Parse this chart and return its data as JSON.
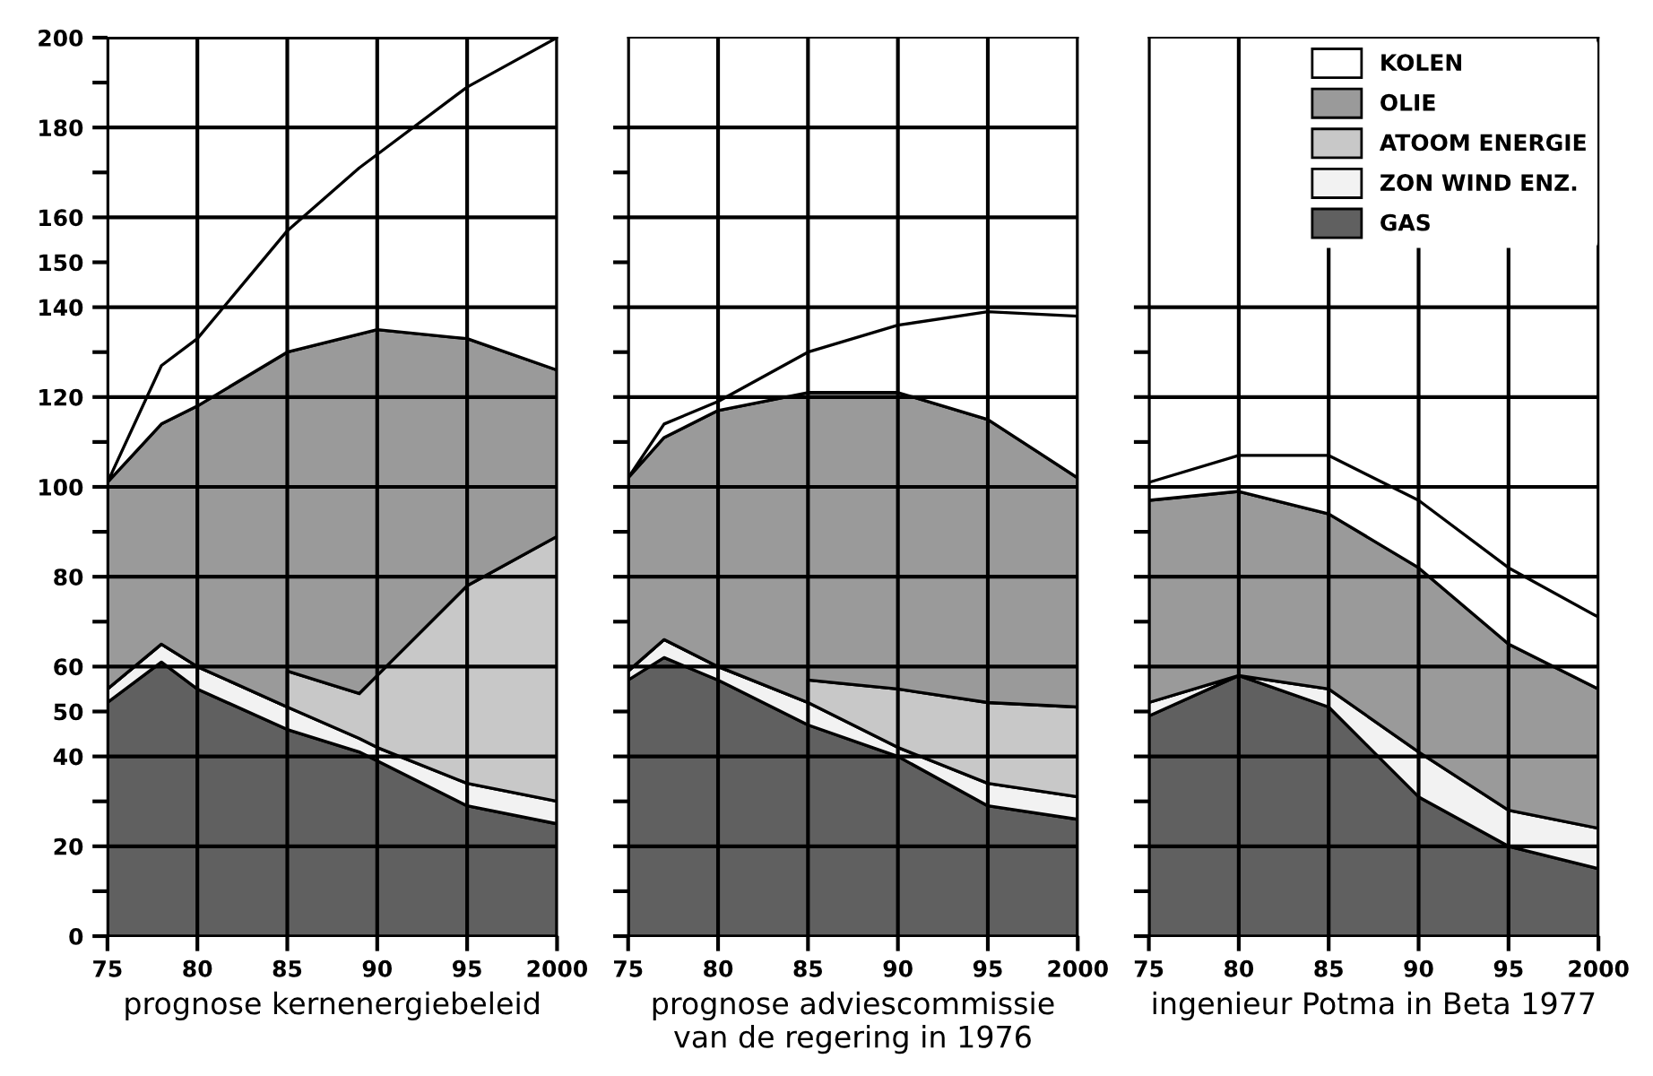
{
  "chart_data": [
    {
      "type": "area",
      "stacked": true,
      "xlabel": "prognose kernenergiebeleid",
      "x": [
        1975,
        1978,
        1980,
        1985,
        1985,
        1989,
        1990,
        1995,
        2000
      ],
      "series": [
        {
          "color": "#606060",
          "values": [
            52,
            61,
            55,
            46,
            46,
            41,
            39,
            29,
            25
          ]
        },
        {
          "color": "#f2f2f2",
          "values": [
            3,
            4,
            5,
            5,
            5,
            3,
            3,
            5,
            5
          ]
        },
        {
          "color": "#c8c8c8",
          "values": [
            0,
            0,
            0,
            0,
            8,
            10,
            16,
            44,
            59
          ]
        },
        {
          "color": "#9a9a9a",
          "values": [
            46,
            49,
            58,
            79,
            71,
            80,
            77,
            55,
            37
          ]
        },
        {
          "color": "#ffffff",
          "values": [
            0,
            13,
            15,
            27,
            27,
            37,
            39,
            56,
            74
          ]
        }
      ],
      "xlim": [
        1975,
        2000
      ],
      "xticks": [
        {
          "value": 1975,
          "label": "75"
        },
        {
          "value": 1980,
          "label": "80"
        },
        {
          "value": 1985,
          "label": "85"
        },
        {
          "value": 1990,
          "label": "90"
        },
        {
          "value": 1995,
          "label": "95"
        },
        2000
      ],
      "ylim": [
        0,
        200
      ],
      "yticks": [
        0,
        {
          "value": 10,
          "label": null
        },
        20,
        {
          "value": 30,
          "label": null
        },
        40,
        50,
        60,
        {
          "value": 70,
          "label": null
        },
        80,
        {
          "value": 90,
          "label": null
        },
        100,
        {
          "value": 110,
          "label": null
        },
        120,
        {
          "value": 130,
          "label": null
        },
        140,
        150,
        160,
        {
          "value": 170,
          "label": null
        },
        180,
        {
          "value": 190,
          "label": null
        },
        200
      ],
      "grid": true
    },
    {
      "type": "area",
      "stacked": true,
      "xlabel": "prognose adviescommissie\nvan de regering in 1976",
      "x": [
        1975,
        1977,
        1980,
        1985,
        1985,
        1990,
        1995,
        2000
      ],
      "series": [
        {
          "color": "#606060",
          "values": [
            57,
            62,
            57,
            47,
            47,
            40,
            29,
            26
          ]
        },
        {
          "color": "#f2f2f2",
          "values": [
            2,
            4,
            3,
            5,
            5,
            2,
            5,
            5
          ]
        },
        {
          "color": "#c8c8c8",
          "values": [
            0,
            0,
            0,
            0,
            5,
            13,
            18,
            20
          ]
        },
        {
          "color": "#9a9a9a",
          "values": [
            43,
            45,
            57,
            69,
            64,
            66,
            63,
            51
          ]
        },
        {
          "color": "#ffffff",
          "values": [
            0,
            3,
            2,
            9,
            9,
            15,
            24,
            36
          ]
        }
      ],
      "xlim": [
        1975,
        2000
      ],
      "xticks": [
        {
          "value": 1975,
          "label": "75"
        },
        {
          "value": 1980,
          "label": "80"
        },
        {
          "value": 1985,
          "label": "85"
        },
        {
          "value": 1990,
          "label": "90"
        },
        {
          "value": 1995,
          "label": "95"
        },
        2000
      ],
      "ylim": [
        0,
        200
      ],
      "yticks": [
        0,
        10,
        20,
        30,
        40,
        50,
        60,
        70,
        80,
        90,
        100,
        110,
        120,
        130,
        140,
        150,
        160,
        170,
        180
      ],
      "tick_labels": "x",
      "grid": true
    },
    {
      "type": "area",
      "stacked": true,
      "xlabel": "ingenieur Potma in Beta 1977",
      "x": [
        1975,
        1980,
        1985,
        1990,
        1995,
        2000
      ],
      "series": [
        {
          "name": "GAS",
          "color": "#606060",
          "values": [
            49,
            58,
            51,
            31,
            20,
            15
          ]
        },
        {
          "name": "ZON WIND ENZ.",
          "color": "#f2f2f2",
          "values": [
            3,
            0,
            4,
            10,
            8,
            9
          ]
        },
        {
          "name": "ATOOM ENERGIE",
          "color": "#c8c8c8",
          "values": [
            null,
            null,
            null,
            null,
            null,
            null
          ]
        },
        {
          "name": "OLIE",
          "color": "#9a9a9a",
          "values": [
            45,
            41,
            39,
            41,
            37,
            31
          ]
        },
        {
          "name": "KOLEN",
          "color": "#ffffff",
          "values": [
            4,
            8,
            13,
            15,
            17,
            16
          ]
        }
      ],
      "xlim": [
        1975,
        2000
      ],
      "xticks": [
        {
          "value": 1975,
          "label": "75"
        },
        {
          "value": 1980,
          "label": "80"
        },
        {
          "value": 1985,
          "label": "85"
        },
        {
          "value": 1990,
          "label": "90"
        },
        {
          "value": 1995,
          "label": "95"
        },
        2000
      ],
      "ylim": [
        0,
        200
      ],
      "yticks": [
        0,
        10,
        20,
        30,
        40,
        50,
        60,
        70,
        80,
        90,
        100,
        110,
        120,
        130,
        140
      ],
      "tick_labels": "x",
      "grid": true,
      "legend": "top right"
    }
  ]
}
